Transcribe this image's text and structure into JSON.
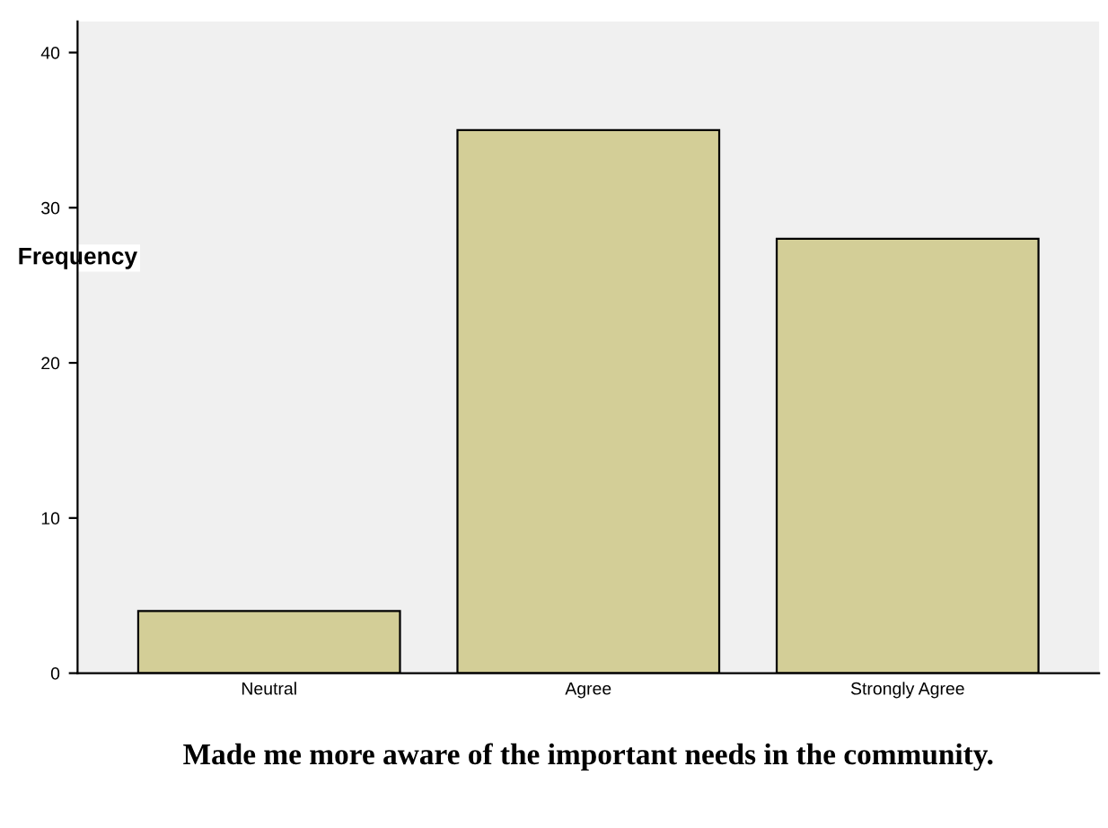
{
  "chart_data": {
    "type": "bar",
    "categories": [
      "Neutral",
      "Agree",
      "Strongly Agree"
    ],
    "values": [
      4,
      35,
      28
    ],
    "color": "#d3ce97",
    "ylabel": "Frequency",
    "xlabel": "Made me more aware of the important needs in the community.",
    "ylim": [
      0,
      42
    ],
    "yticks": [
      0,
      10,
      20,
      30,
      40
    ],
    "grid": false,
    "legend": false
  }
}
